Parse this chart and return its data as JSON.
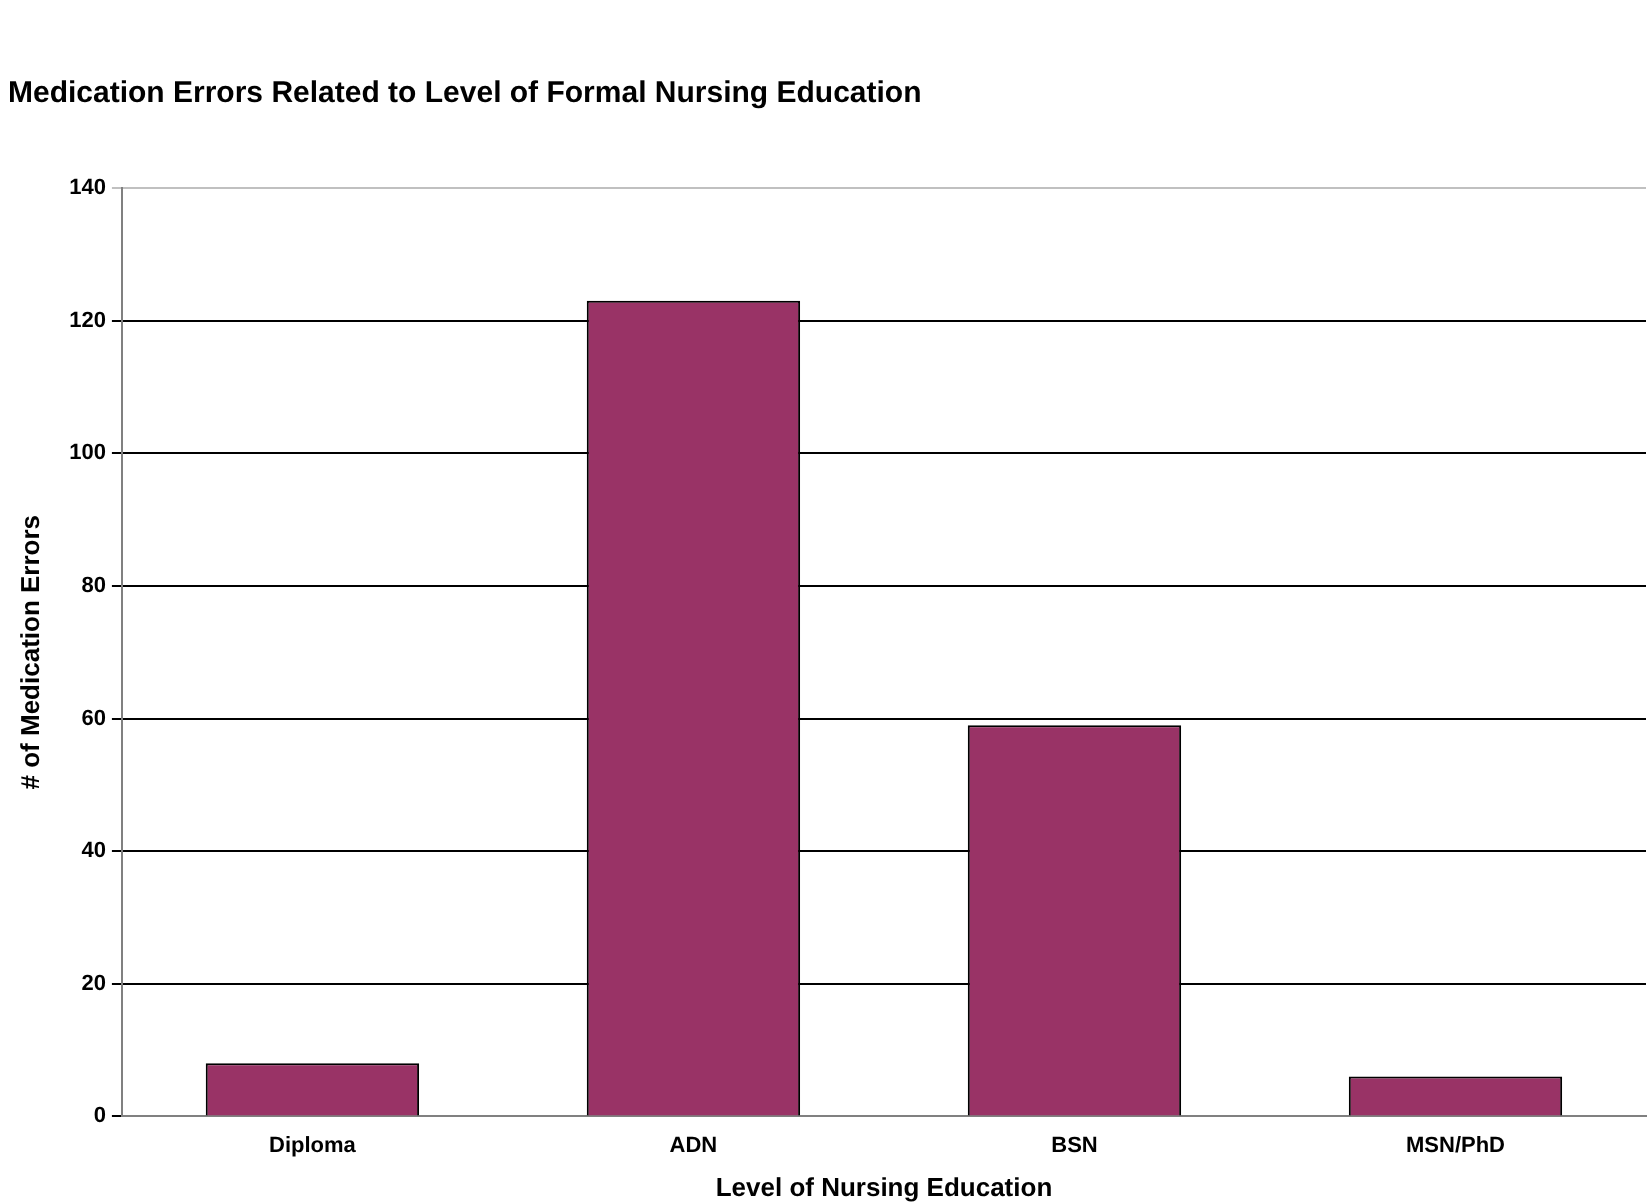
{
  "chart_data": {
    "type": "bar",
    "title": "Medication Errors Related to Level of Formal Nursing Education",
    "xlabel": "Level of Nursing Education",
    "ylabel": "# of Medication Errors",
    "categories": [
      "Diploma",
      "ADN",
      "BSN",
      "MSN/PhD"
    ],
    "values": [
      8,
      123,
      59,
      6
    ],
    "color": "#993366",
    "ylim": [
      0,
      140
    ],
    "yticks": [
      0,
      20,
      40,
      60,
      80,
      100,
      120,
      140
    ],
    "grid": "y",
    "legend": false
  }
}
